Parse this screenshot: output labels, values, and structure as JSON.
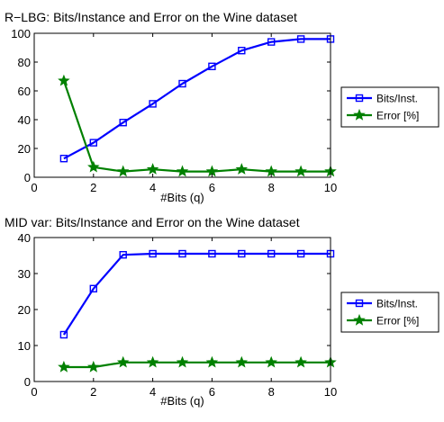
{
  "colors": {
    "bits": "#0000ff",
    "error": "#008000",
    "axis": "#000000"
  },
  "chart_data": [
    {
      "type": "line",
      "title": "R−LBG: Bits/Instance and Error on the Wine dataset",
      "xlabel": "#Bits (q)",
      "ylabel": "",
      "xlim": [
        0,
        10
      ],
      "ylim": [
        0,
        100
      ],
      "xticks": [
        0,
        2,
        4,
        6,
        8,
        10
      ],
      "yticks": [
        0,
        20,
        40,
        60,
        80,
        100
      ],
      "grid": false,
      "legend": "right",
      "x": [
        1,
        2,
        3,
        4,
        5,
        6,
        7,
        8,
        9,
        10
      ],
      "series": [
        {
          "name": "Bits/Inst.",
          "marker": "square",
          "values": [
            13,
            24,
            38,
            51,
            65,
            77,
            88,
            94,
            96,
            96
          ]
        },
        {
          "name": "Error [%]",
          "marker": "star",
          "values": [
            67,
            7,
            4,
            5.5,
            4,
            4,
            5.5,
            4,
            4,
            4
          ]
        }
      ]
    },
    {
      "type": "line",
      "title": "MID var: Bits/Instance and Error on the Wine dataset",
      "xlabel": "#Bits (q)",
      "ylabel": "",
      "xlim": [
        0,
        10
      ],
      "ylim": [
        0,
        40
      ],
      "xticks": [
        0,
        2,
        4,
        6,
        8,
        10
      ],
      "yticks": [
        0,
        10,
        20,
        30,
        40
      ],
      "grid": false,
      "legend": "right",
      "x": [
        1,
        2,
        3,
        4,
        5,
        6,
        7,
        8,
        9,
        10
      ],
      "series": [
        {
          "name": "Bits/Inst.",
          "marker": "square",
          "values": [
            13,
            25.8,
            35.2,
            35.5,
            35.5,
            35.5,
            35.5,
            35.5,
            35.5,
            35.5
          ]
        },
        {
          "name": "Error [%]",
          "marker": "star",
          "values": [
            4,
            4,
            5.3,
            5.3,
            5.3,
            5.3,
            5.3,
            5.3,
            5.3,
            5.3
          ]
        }
      ]
    }
  ]
}
